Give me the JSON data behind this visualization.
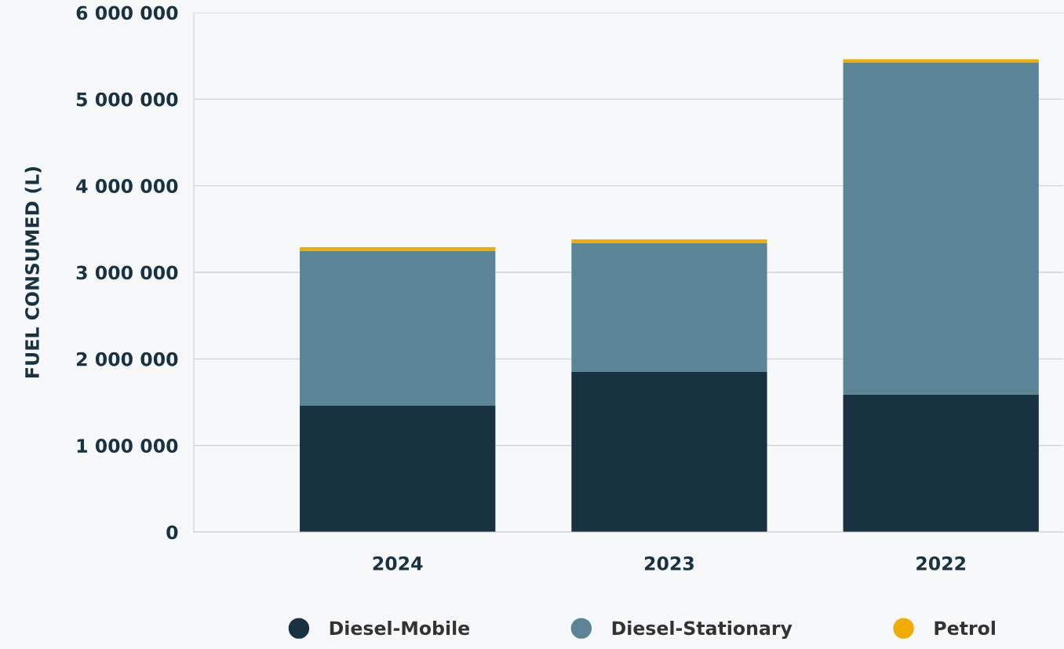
{
  "chart_data": {
    "type": "bar",
    "stacked": true,
    "ylabel": "FUEL CONSUMED (L)",
    "categories": [
      "2024",
      "2023",
      "2022"
    ],
    "series": [
      {
        "name": "Diesel-Mobile",
        "color": "#183242",
        "values": [
          1460000,
          1850000,
          1590000
        ]
      },
      {
        "name": "Diesel-Stationary",
        "color": "#5b8596",
        "values": [
          1790000,
          1490000,
          3830000
        ]
      },
      {
        "name": "Petrol",
        "color": "#f0ad00",
        "values": [
          40000,
          40000,
          40000
        ]
      }
    ],
    "ylim": [
      0,
      6000000
    ],
    "yticks": [
      {
        "value": 0,
        "label": "0"
      },
      {
        "value": 1000000,
        "label": "1 000 000"
      },
      {
        "value": 2000000,
        "label": "2 000 000"
      },
      {
        "value": 3000000,
        "label": "3 000 000"
      },
      {
        "value": 4000000,
        "label": "4 000 000"
      },
      {
        "value": 5000000,
        "label": "5 000 000"
      },
      {
        "value": 6000000,
        "label": "6 000 000"
      }
    ],
    "grid": "y",
    "legend": "bottom"
  }
}
